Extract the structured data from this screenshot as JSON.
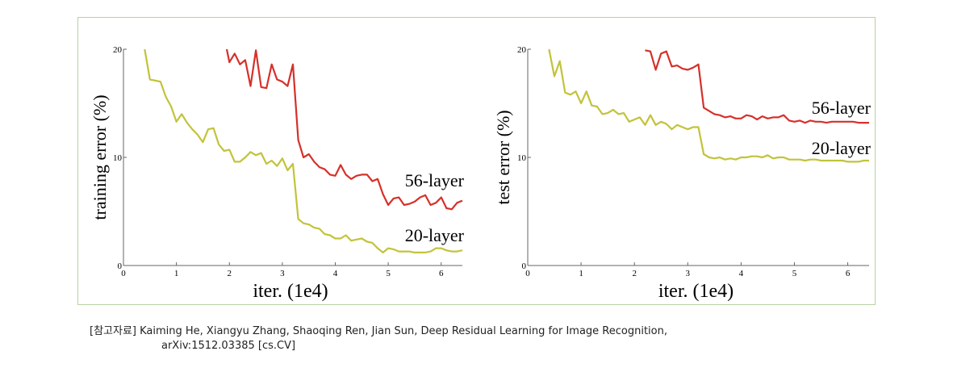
{
  "chart_data": [
    {
      "type": "line",
      "xlabel": "iter. (1e4)",
      "ylabel": "training error (%)",
      "xlim": [
        0,
        6.4
      ],
      "ylim": [
        0,
        20
      ],
      "xticks": [
        "0",
        "1",
        "2",
        "3",
        "4",
        "5",
        "6"
      ],
      "yticks": [
        "0",
        "10",
        "20"
      ],
      "grid": false,
      "series": [
        {
          "name": "56-layer",
          "color": "#d6302a",
          "x": [
            1.95,
            2.0,
            2.1,
            2.2,
            2.3,
            2.4,
            2.5,
            2.6,
            2.7,
            2.8,
            2.9,
            3.0,
            3.1,
            3.2,
            3.3,
            3.4,
            3.5,
            3.6,
            3.7,
            3.8,
            3.9,
            4.0,
            4.1,
            4.2,
            4.3,
            4.4,
            4.5,
            4.6,
            4.7,
            4.8,
            4.9,
            5.0,
            5.1,
            5.2,
            5.3,
            5.4,
            5.5,
            5.6,
            5.7,
            5.8,
            5.9,
            6.0,
            6.1,
            6.2,
            6.3,
            6.4
          ],
          "y": [
            20.0,
            18.8,
            19.6,
            18.6,
            19.0,
            16.6,
            19.9,
            16.5,
            16.4,
            18.6,
            17.2,
            17.0,
            16.6,
            18.6,
            11.6,
            10.0,
            10.3,
            9.6,
            9.1,
            8.9,
            8.4,
            8.3,
            9.3,
            8.4,
            8.0,
            8.3,
            8.4,
            8.4,
            7.8,
            8.0,
            6.6,
            5.6,
            6.2,
            6.3,
            5.6,
            5.7,
            5.9,
            6.3,
            6.5,
            5.6,
            5.8,
            6.3,
            5.3,
            5.2,
            5.8,
            6.0
          ]
        },
        {
          "name": "20-layer",
          "color": "#c2c33a",
          "x": [
            0.4,
            0.5,
            0.7,
            0.8,
            0.9,
            1.0,
            1.1,
            1.2,
            1.3,
            1.4,
            1.5,
            1.6,
            1.7,
            1.8,
            1.9,
            2.0,
            2.1,
            2.2,
            2.3,
            2.4,
            2.5,
            2.6,
            2.7,
            2.8,
            2.9,
            3.0,
            3.1,
            3.2,
            3.3,
            3.4,
            3.5,
            3.6,
            3.7,
            3.8,
            3.9,
            4.0,
            4.1,
            4.2,
            4.3,
            4.4,
            4.5,
            4.6,
            4.7,
            4.8,
            4.9,
            5.0,
            5.1,
            5.2,
            5.3,
            5.4,
            5.5,
            5.6,
            5.7,
            5.8,
            5.9,
            6.0,
            6.1,
            6.2,
            6.3,
            6.4
          ],
          "y": [
            20.0,
            17.2,
            17.0,
            15.6,
            14.7,
            13.3,
            14.0,
            13.2,
            12.6,
            12.1,
            11.4,
            12.6,
            12.7,
            11.2,
            10.6,
            10.7,
            9.6,
            9.6,
            10.0,
            10.5,
            10.2,
            10.4,
            9.4,
            9.7,
            9.2,
            9.9,
            8.8,
            9.4,
            4.3,
            3.9,
            3.8,
            3.5,
            3.4,
            2.9,
            2.8,
            2.5,
            2.5,
            2.8,
            2.3,
            2.4,
            2.5,
            2.2,
            2.1,
            1.6,
            1.2,
            1.6,
            1.5,
            1.3,
            1.3,
            1.3,
            1.2,
            1.2,
            1.2,
            1.3,
            1.6,
            1.6,
            1.4,
            1.3,
            1.3,
            1.4
          ]
        }
      ]
    },
    {
      "type": "line",
      "xlabel": "iter. (1e4)",
      "ylabel": "test error (%)",
      "xlim": [
        0,
        6.4
      ],
      "ylim": [
        0,
        20
      ],
      "xticks": [
        "0",
        "1",
        "2",
        "3",
        "4",
        "5",
        "6"
      ],
      "yticks": [
        "0",
        "10",
        "20"
      ],
      "grid": false,
      "series": [
        {
          "name": "56-layer",
          "color": "#d6302a",
          "x": [
            2.2,
            2.3,
            2.4,
            2.5,
            2.6,
            2.7,
            2.8,
            2.9,
            3.0,
            3.1,
            3.2,
            3.3,
            3.4,
            3.5,
            3.6,
            3.7,
            3.8,
            3.9,
            4.0,
            4.1,
            4.2,
            4.3,
            4.4,
            4.5,
            4.6,
            4.7,
            4.8,
            4.9,
            5.0,
            5.1,
            5.2,
            5.3,
            5.4,
            5.5,
            5.6,
            5.7,
            5.8,
            5.9,
            6.0,
            6.1,
            6.2,
            6.3,
            6.4
          ],
          "y": [
            19.9,
            19.8,
            18.1,
            19.6,
            19.8,
            18.4,
            18.5,
            18.2,
            18.1,
            18.3,
            18.6,
            14.6,
            14.3,
            14.0,
            13.9,
            13.7,
            13.8,
            13.6,
            13.6,
            13.9,
            13.8,
            13.5,
            13.8,
            13.6,
            13.7,
            13.7,
            13.9,
            13.4,
            13.3,
            13.4,
            13.2,
            13.4,
            13.3,
            13.3,
            13.2,
            13.3,
            13.3,
            13.3,
            13.3,
            13.3,
            13.2,
            13.2,
            13.2
          ]
        },
        {
          "name": "20-layer",
          "color": "#c2c33a",
          "x": [
            0.4,
            0.5,
            0.6,
            0.7,
            0.8,
            0.9,
            1.0,
            1.1,
            1.2,
            1.3,
            1.4,
            1.5,
            1.6,
            1.7,
            1.8,
            1.9,
            2.0,
            2.1,
            2.2,
            2.3,
            2.4,
            2.5,
            2.6,
            2.7,
            2.8,
            2.9,
            3.0,
            3.1,
            3.2,
            3.3,
            3.4,
            3.5,
            3.6,
            3.7,
            3.8,
            3.9,
            4.0,
            4.1,
            4.2,
            4.3,
            4.4,
            4.5,
            4.6,
            4.7,
            4.8,
            4.9,
            5.0,
            5.1,
            5.2,
            5.3,
            5.4,
            5.5,
            5.6,
            5.7,
            5.8,
            5.9,
            6.0,
            6.1,
            6.2,
            6.3,
            6.4
          ],
          "y": [
            20.0,
            17.5,
            18.9,
            16.0,
            15.8,
            16.1,
            15.0,
            16.1,
            14.8,
            14.7,
            14.0,
            14.1,
            14.4,
            14.0,
            14.1,
            13.3,
            13.5,
            13.7,
            13.0,
            13.9,
            13.0,
            13.3,
            13.1,
            12.6,
            13.0,
            12.8,
            12.6,
            12.8,
            12.8,
            10.3,
            10.0,
            9.9,
            10.0,
            9.8,
            9.9,
            9.8,
            10.0,
            10.0,
            10.1,
            10.1,
            10.0,
            10.2,
            9.9,
            10.0,
            10.0,
            9.8,
            9.8,
            9.8,
            9.7,
            9.8,
            9.8,
            9.7,
            9.7,
            9.7,
            9.7,
            9.7,
            9.6,
            9.6,
            9.6,
            9.7,
            9.7
          ]
        }
      ]
    }
  ],
  "caption": {
    "line1": "[참고자료] Kaiming He, Xiangyu Zhang, Shaoqing Ren, Jian Sun, Deep Residual Learning for Image Recognition,",
    "line2": "arXiv:1512.03385 [cs.CV]"
  }
}
